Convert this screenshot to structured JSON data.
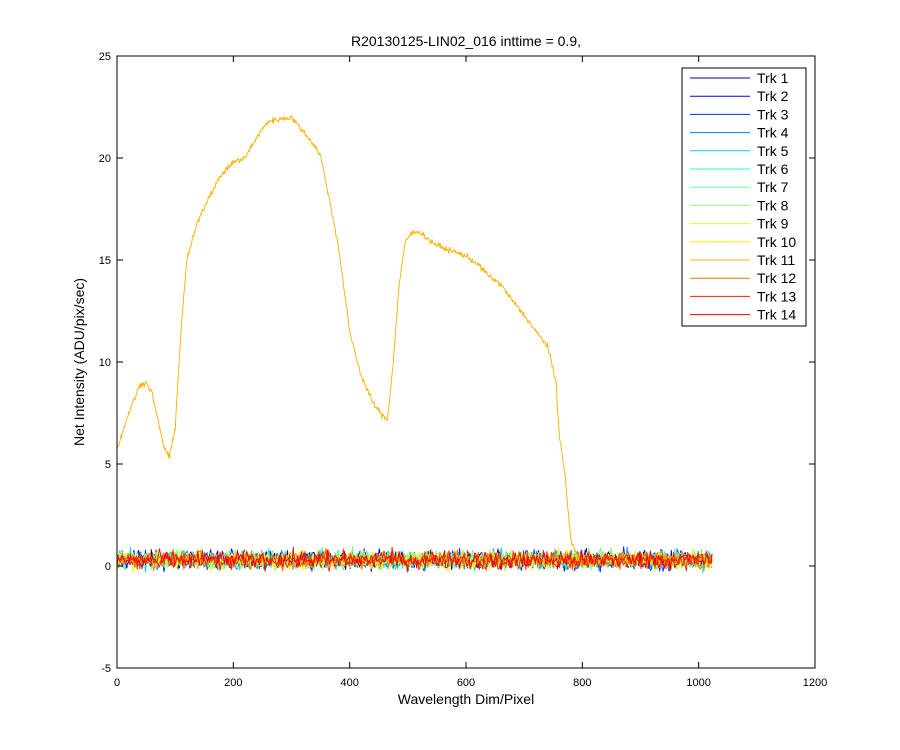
{
  "chart_data": {
    "type": "line",
    "title": "R20130125-LIN02_016 inttime = 0.9,",
    "xlabel": "Wavelength Dim/Pixel",
    "ylabel": "Net Intensity (ADU/pix/sec)",
    "xlim": [
      0,
      1200
    ],
    "ylim": [
      -5,
      25
    ],
    "xticks": [
      0,
      200,
      400,
      600,
      800,
      1000,
      1200
    ],
    "yticks": [
      -5,
      0,
      5,
      10,
      15,
      20,
      25
    ],
    "xtick_labels": [
      "0",
      "200",
      "400",
      "600",
      "800",
      "1000",
      "1200"
    ],
    "ytick_labels": [
      "-5",
      "0",
      "5",
      "10",
      "15",
      "20",
      "25"
    ],
    "grid": false,
    "legend_position": "top-right",
    "noise_series": {
      "x_range": [
        1,
        1024
      ],
      "mean": 0.3,
      "approx_range": [
        -0.8,
        1.2
      ]
    },
    "series": [
      {
        "name": "Trk 1",
        "color": "#00008F",
        "kind": "noise"
      },
      {
        "name": "Trk 2",
        "color": "#0000DF",
        "kind": "noise"
      },
      {
        "name": "Trk 3",
        "color": "#0030FF",
        "kind": "noise"
      },
      {
        "name": "Trk 4",
        "color": "#0080FF",
        "kind": "noise"
      },
      {
        "name": "Trk 5",
        "color": "#00CFFF",
        "kind": "noise"
      },
      {
        "name": "Trk 6",
        "color": "#20FFDF",
        "kind": "noise"
      },
      {
        "name": "Trk 7",
        "color": "#60FF9F",
        "kind": "noise"
      },
      {
        "name": "Trk 8",
        "color": "#9FFF60",
        "kind": "noise"
      },
      {
        "name": "Trk 9",
        "color": "#DFFF20",
        "kind": "noise"
      },
      {
        "name": "Trk 10",
        "color": "#FFEF00",
        "kind": "noise"
      },
      {
        "name": "Trk 11",
        "color": "#FFB000",
        "kind": "spectrum",
        "x": [
          1,
          20,
          40,
          50,
          60,
          70,
          80,
          90,
          100,
          110,
          120,
          140,
          160,
          180,
          200,
          220,
          240,
          260,
          280,
          300,
          320,
          340,
          350,
          360,
          380,
          400,
          420,
          440,
          455,
          465,
          475,
          485,
          495,
          505,
          520,
          540,
          560,
          580,
          600,
          620,
          640,
          660,
          680,
          700,
          720,
          740,
          755,
          760,
          770,
          780,
          790,
          800
        ],
        "y": [
          5.8,
          7.5,
          8.9,
          9.0,
          8.5,
          7.2,
          5.9,
          5.3,
          6.8,
          11.5,
          15.0,
          17.0,
          18.2,
          19.2,
          19.8,
          20.0,
          21.0,
          21.8,
          21.9,
          22.0,
          21.3,
          20.6,
          20.1,
          18.7,
          15.8,
          11.5,
          9.3,
          8.0,
          7.4,
          7.2,
          10.0,
          13.8,
          15.8,
          16.3,
          16.4,
          15.9,
          15.6,
          15.4,
          15.2,
          14.8,
          14.2,
          13.8,
          13.0,
          12.3,
          11.5,
          10.8,
          9.0,
          6.5,
          4.5,
          1.3,
          0.6,
          0.3
        ]
      },
      {
        "name": "Trk 12",
        "color": "#FF7000",
        "kind": "noise"
      },
      {
        "name": "Trk 13",
        "color": "#FF2000",
        "kind": "noise"
      },
      {
        "name": "Trk 14",
        "color": "#EF0000",
        "kind": "noise"
      }
    ]
  }
}
